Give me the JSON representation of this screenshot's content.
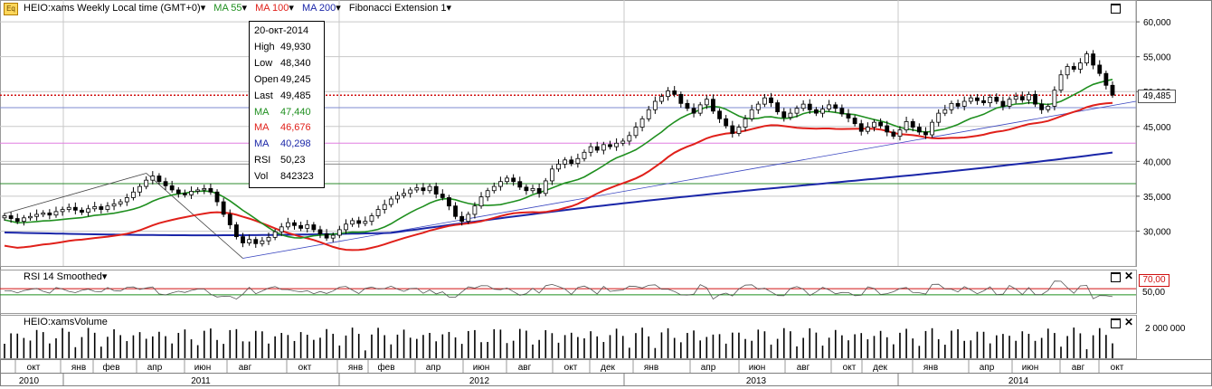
{
  "header": {
    "symbol_label": "HEIO:xams Weekly Local time (GMT+0)",
    "ma55_label": "MA 55",
    "ma100_label": "MA 100",
    "ma200_label": "MA 200",
    "fib_label": "Fibonacci Extension 1",
    "dropdown_glyph": "▾"
  },
  "colors": {
    "ma55": "#1f8f1f",
    "ma100": "#e0201a",
    "ma200": "#1a26a8",
    "last_price_line": "#d01010",
    "grid": "#c8c8c8",
    "rsi_band_upper": "#d01010",
    "rsi_band_lower": "#1f8f1f"
  },
  "infobox": {
    "date": "20-окт-2014",
    "rows": [
      {
        "label": "High",
        "value": "49,930",
        "color": "#000000"
      },
      {
        "label": "Low",
        "value": "48,340",
        "color": "#000000"
      },
      {
        "label": "Open",
        "value": "49,245",
        "color": "#000000"
      },
      {
        "label": "Last",
        "value": "49,485",
        "color": "#000000"
      },
      {
        "label": "MA",
        "value": "47,440",
        "color": "#1f8f1f"
      },
      {
        "label": "MA",
        "value": "46,676",
        "color": "#e0201a"
      },
      {
        "label": "MA",
        "value": "40,298",
        "color": "#1a26a8"
      },
      {
        "label": "RSI",
        "value": "50,23",
        "color": "#000000"
      },
      {
        "label": "Vol",
        "value": "842323",
        "color": "#000000"
      }
    ]
  },
  "last_price_badge": "49,485",
  "rsi": {
    "label": "RSI 14 Smoothed",
    "upper_badge": "70,00",
    "mid_label": "50,00"
  },
  "volume": {
    "label": "HEIO:xamsVolume",
    "axis_label": "2 000 000"
  },
  "time_axis": {
    "months": [
      "окт",
      "янв",
      "фев",
      "апр",
      "июн",
      "авг",
      "окт",
      "янв",
      "фев",
      "апр",
      "июн",
      "авг",
      "окт",
      "дек",
      "янв",
      "апр",
      "июн",
      "авг",
      "окт",
      "дек",
      "янв",
      "апр",
      "июн",
      "авг",
      "окт"
    ],
    "years": [
      "2010",
      "2011",
      "2012",
      "2013",
      "2014"
    ]
  },
  "chart_data": {
    "type": "candlestick",
    "title": "HEIO:xams Weekly",
    "y_ticks": [
      "30,000",
      "35,000",
      "40,000",
      "45,000",
      "50,000",
      "55,000",
      "60,000"
    ],
    "ylim": [
      25.0,
      63.0
    ],
    "x_range": [
      "2010-10-04",
      "2014-10-20"
    ],
    "weekly_close": [
      32.2,
      31.8,
      31.4,
      31.9,
      32.1,
      32.4,
      32.6,
      32.3,
      32.8,
      33.1,
      33.4,
      33.0,
      32.7,
      33.2,
      33.5,
      33.1,
      33.6,
      33.9,
      34.2,
      34.8,
      35.6,
      36.4,
      37.3,
      37.9,
      37.1,
      36.5,
      35.9,
      35.4,
      35.2,
      35.7,
      35.9,
      36.1,
      35.6,
      34.2,
      32.4,
      30.9,
      29.2,
      28.3,
      28.8,
      28.2,
      28.6,
      29.1,
      29.9,
      30.6,
      31.2,
      30.8,
      30.4,
      30.9,
      30.2,
      29.6,
      29.0,
      29.4,
      30.2,
      31.0,
      31.5,
      31.1,
      31.4,
      32.2,
      33.1,
      33.8,
      34.6,
      35.1,
      35.4,
      35.9,
      36.2,
      35.8,
      36.4,
      35.3,
      34.8,
      33.6,
      32.1,
      31.4,
      32.4,
      33.6,
      34.9,
      35.8,
      36.4,
      37.1,
      37.6,
      37.1,
      36.3,
      35.8,
      36.1,
      35.4,
      37.2,
      38.9,
      39.6,
      40.2,
      39.7,
      40.4,
      41.3,
      42.1,
      41.6,
      42.4,
      42.1,
      42.6,
      42.9,
      43.7,
      44.9,
      46.1,
      47.4,
      48.6,
      49.3,
      50.1,
      49.6,
      48.3,
      47.6,
      46.9,
      48.1,
      48.9,
      47.2,
      46.1,
      45.1,
      44.0,
      44.9,
      46.1,
      47.4,
      48.2,
      49.1,
      48.4,
      47.1,
      46.3,
      46.9,
      47.6,
      48.2,
      47.4,
      46.9,
      47.5,
      48.1,
      47.6,
      46.8,
      46.2,
      45.4,
      44.3,
      44.9,
      45.6,
      45.1,
      44.2,
      43.6,
      44.5,
      45.7,
      44.9,
      44.2,
      43.8,
      45.6,
      46.9,
      47.4,
      48.3,
      47.9,
      48.6,
      49.1,
      48.7,
      48.4,
      49.2,
      48.6,
      47.9,
      48.9,
      49.3,
      48.8,
      49.6,
      48.2,
      47.4,
      47.9,
      50.2,
      52.4,
      53.6,
      53.2,
      54.1,
      55.4,
      53.8,
      52.6,
      50.9,
      49.5
    ],
    "series": [
      {
        "name": "MA 55",
        "value_last": 47.44
      },
      {
        "name": "MA 100",
        "value_last": 46.676
      },
      {
        "name": "MA 200",
        "value_last": 40.298
      }
    ],
    "last": 49.485,
    "horizontal_levels": [
      49.485,
      47.7,
      42.6,
      39.6,
      36.8
    ],
    "rsi": {
      "range": [
        0,
        100
      ],
      "bands": [
        70,
        50,
        30
      ],
      "last": 50.23
    },
    "volume": {
      "last": 842323,
      "axis_max": 2000000
    }
  }
}
